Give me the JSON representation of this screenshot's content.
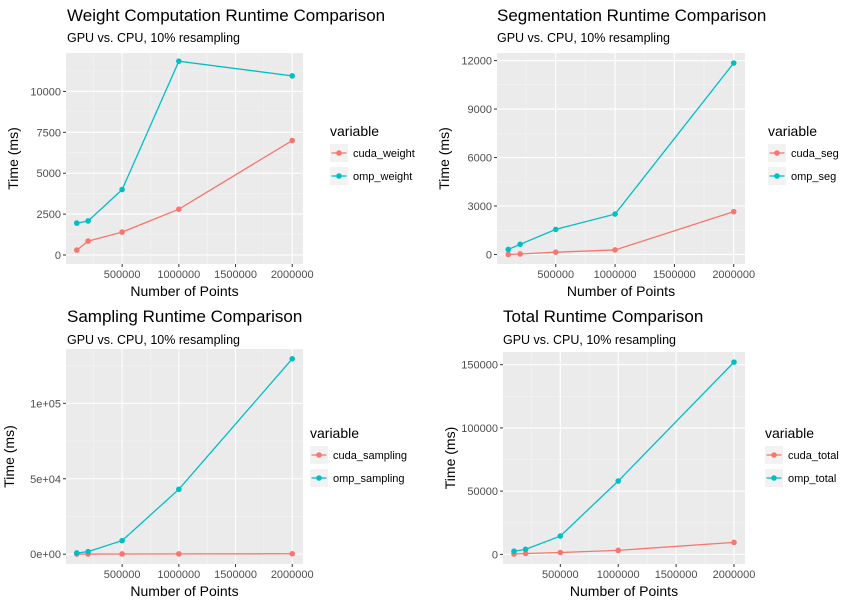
{
  "chart_data": [
    {
      "type": "line",
      "title": "Weight Computation Runtime Comparison",
      "subtitle": "GPU vs. CPU, 10% resampling",
      "xlabel": "Number of Points",
      "ylabel": "Time (ms)",
      "x": [
        100000,
        200000,
        500000,
        1000000,
        2000000
      ],
      "xlim": [
        5000,
        2095000
      ],
      "ylim": [
        -550,
        12350
      ],
      "x_ticks": [
        500000,
        1000000,
        1500000,
        2000000
      ],
      "x_tick_labels": [
        "500000",
        "1000000",
        "1500000",
        "2000000"
      ],
      "y_ticks": [
        0,
        2500,
        5000,
        7500,
        10000
      ],
      "y_tick_labels": [
        "0",
        "2500",
        "5000",
        "7500",
        "10000"
      ],
      "legend_title": "variable",
      "grid": true,
      "series": [
        {
          "name": "cuda_weight",
          "color": "#F8766D",
          "values": [
            300,
            850,
            1400,
            2800,
            7000
          ]
        },
        {
          "name": "omp_weight",
          "color": "#00BFC4",
          "values": [
            1950,
            2080,
            4000,
            11850,
            10950
          ]
        }
      ]
    },
    {
      "type": "line",
      "title": "Segmentation Runtime Comparison",
      "subtitle": "GPU vs. CPU, 10% resampling",
      "xlabel": "Number of Points",
      "ylabel": "Time (ms)",
      "x": [
        100000,
        200000,
        500000,
        1000000,
        2000000
      ],
      "xlim": [
        5000,
        2095000
      ],
      "ylim": [
        -590,
        12470
      ],
      "x_ticks": [
        500000,
        1000000,
        1500000,
        2000000
      ],
      "x_tick_labels": [
        "500000",
        "1000000",
        "1500000",
        "2000000"
      ],
      "y_ticks": [
        0,
        3000,
        6000,
        9000,
        12000
      ],
      "y_tick_labels": [
        "0",
        "3000",
        "6000",
        "9000",
        "12000"
      ],
      "legend_title": "variable",
      "grid": true,
      "series": [
        {
          "name": "cuda_seg",
          "color": "#F8766D",
          "values": [
            0,
            30,
            140,
            280,
            2650
          ]
        },
        {
          "name": "omp_seg",
          "color": "#00BFC4",
          "values": [
            310,
            630,
            1550,
            2500,
            11850
          ]
        }
      ]
    },
    {
      "type": "line",
      "title": "Sampling Runtime Comparison",
      "subtitle": "GPU vs. CPU, 10% resampling",
      "xlabel": "Number of Points",
      "ylabel": "Time (ms)",
      "x": [
        100000,
        200000,
        500000,
        1000000,
        2000000
      ],
      "xlim": [
        5000,
        2095000
      ],
      "ylim": [
        -6500,
        136000
      ],
      "x_ticks": [
        500000,
        1000000,
        1500000,
        2000000
      ],
      "x_tick_labels": [
        "500000",
        "1000000",
        "1500000",
        "2000000"
      ],
      "y_ticks": [
        0,
        50000,
        100000
      ],
      "y_tick_labels": [
        "0e+00",
        "5e+04",
        "1e+05"
      ],
      "legend_title": "variable",
      "grid": true,
      "series": [
        {
          "name": "cuda_sampling",
          "color": "#F8766D",
          "values": [
            100,
            100,
            150,
            200,
            300
          ]
        },
        {
          "name": "omp_sampling",
          "color": "#00BFC4",
          "values": [
            800,
            1700,
            9000,
            43000,
            129500
          ]
        }
      ]
    },
    {
      "type": "line",
      "title": "Total Runtime Comparison",
      "subtitle": "GPU vs. CPU, 10% resampling",
      "xlabel": "Number of Points",
      "ylabel": "Time (ms)",
      "x": [
        100000,
        200000,
        500000,
        1000000,
        2000000
      ],
      "xlim": [
        5000,
        2095000
      ],
      "ylim": [
        -7600,
        160000
      ],
      "x_ticks": [
        500000,
        1000000,
        1500000,
        2000000
      ],
      "x_tick_labels": [
        "500000",
        "1000000",
        "1500000",
        "2000000"
      ],
      "y_ticks": [
        0,
        50000,
        100000,
        150000
      ],
      "y_tick_labels": [
        "0",
        "50000",
        "100000",
        "150000"
      ],
      "legend_title": "variable",
      "grid": true,
      "series": [
        {
          "name": "cuda_total",
          "color": "#F8766D",
          "values": [
            300,
            700,
            1500,
            3200,
            9500
          ]
        },
        {
          "name": "omp_total",
          "color": "#00BFC4",
          "values": [
            2500,
            4000,
            14500,
            58000,
            152000
          ]
        }
      ]
    }
  ]
}
